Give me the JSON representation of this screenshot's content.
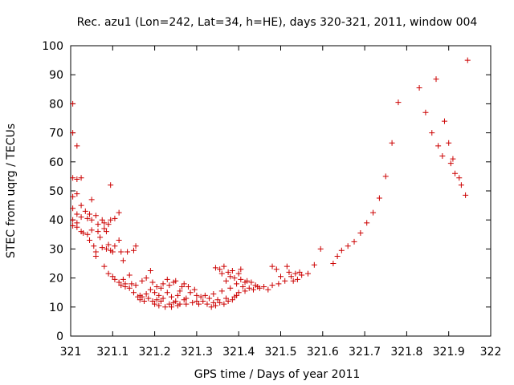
{
  "chart_data": {
    "type": "scatter",
    "title": "Rec. azu1 (Lon=242, Lat=34, h=HE), days 320-321, 2011, window 004",
    "xlabel": "GPS time / Days of year 2011",
    "ylabel": "STEC from uqrg / TECUs",
    "xlim": [
      321,
      322
    ],
    "ylim": [
      0,
      100
    ],
    "xticks": [
      "321",
      "321.1",
      "321.2",
      "321.3",
      "321.4",
      "321.5",
      "321.6",
      "321.7",
      "321.8",
      "321.9",
      "322"
    ],
    "yticks": [
      "0",
      "10",
      "20",
      "30",
      "40",
      "50",
      "60",
      "70",
      "80",
      "90",
      "100"
    ],
    "marker": "plus",
    "color": "#cc0000",
    "grid": false,
    "legend": "none",
    "series": [
      {
        "points": [
          [
            321.005,
            80
          ],
          [
            321.005,
            70
          ],
          [
            321.005,
            54.5
          ],
          [
            321.005,
            48
          ],
          [
            321.005,
            44
          ],
          [
            321.005,
            40
          ],
          [
            321.005,
            38
          ],
          [
            321.015,
            65.5
          ],
          [
            321.015,
            54
          ],
          [
            321.015,
            49
          ],
          [
            321.015,
            42
          ],
          [
            321.015,
            39
          ],
          [
            321.015,
            37.5
          ],
          [
            321.025,
            54.5
          ],
          [
            321.025,
            45
          ],
          [
            321.025,
            41
          ],
          [
            321.025,
            36
          ],
          [
            321.03,
            35.5
          ],
          [
            321.035,
            43
          ],
          [
            321.04,
            40.5
          ],
          [
            321.04,
            35
          ],
          [
            321.045,
            42
          ],
          [
            321.045,
            33
          ],
          [
            321.05,
            47
          ],
          [
            321.05,
            40
          ],
          [
            321.05,
            36.5
          ],
          [
            321.055,
            31
          ],
          [
            321.06,
            41.5
          ],
          [
            321.06,
            29
          ],
          [
            321.06,
            27.5
          ],
          [
            321.065,
            38.5
          ],
          [
            321.065,
            36
          ],
          [
            321.07,
            34
          ],
          [
            321.075,
            40
          ],
          [
            321.075,
            30.5
          ],
          [
            321.08,
            39
          ],
          [
            321.08,
            37
          ],
          [
            321.08,
            24
          ],
          [
            321.085,
            36
          ],
          [
            321.085,
            30
          ],
          [
            321.09,
            38.5
          ],
          [
            321.09,
            31.5
          ],
          [
            321.09,
            21.5
          ],
          [
            321.095,
            52
          ],
          [
            321.095,
            40
          ],
          [
            321.095,
            29.5
          ],
          [
            321.1,
            20.5
          ],
          [
            321.1,
            29
          ],
          [
            321.105,
            40.5
          ],
          [
            321.105,
            31
          ],
          [
            321.105,
            19.5
          ],
          [
            321.115,
            42.5
          ],
          [
            321.115,
            33
          ],
          [
            321.115,
            18.5
          ],
          [
            321.12,
            29
          ],
          [
            321.12,
            17.5
          ],
          [
            321.125,
            26
          ],
          [
            321.125,
            19.5
          ],
          [
            321.13,
            18
          ],
          [
            321.13,
            17
          ],
          [
            321.135,
            29
          ],
          [
            321.14,
            21
          ],
          [
            321.14,
            16.5
          ],
          [
            321.145,
            18
          ],
          [
            321.15,
            29.5
          ],
          [
            321.15,
            15
          ],
          [
            321.155,
            31
          ],
          [
            321.155,
            17.5
          ],
          [
            321.16,
            13.5
          ],
          [
            321.165,
            14
          ],
          [
            321.165,
            12.5
          ],
          [
            321.17,
            19
          ],
          [
            321.17,
            13.5
          ],
          [
            321.175,
            12
          ],
          [
            321.18,
            20
          ],
          [
            321.18,
            14.5
          ],
          [
            321.185,
            13
          ],
          [
            321.19,
            22.5
          ],
          [
            321.19,
            16
          ],
          [
            321.195,
            18.5
          ],
          [
            321.195,
            12
          ],
          [
            321.2,
            15
          ],
          [
            321.2,
            11
          ],
          [
            321.205,
            17
          ],
          [
            321.205,
            12.5
          ],
          [
            321.21,
            14
          ],
          [
            321.21,
            10.5
          ],
          [
            321.215,
            16.5
          ],
          [
            321.215,
            12
          ],
          [
            321.22,
            18
          ],
          [
            321.22,
            13
          ],
          [
            321.225,
            10
          ],
          [
            321.23,
            19.5
          ],
          [
            321.23,
            15
          ],
          [
            321.235,
            17.5
          ],
          [
            321.235,
            11
          ],
          [
            321.24,
            13.5
          ],
          [
            321.24,
            10
          ],
          [
            321.245,
            18.5
          ],
          [
            321.245,
            11.5
          ],
          [
            321.25,
            19
          ],
          [
            321.25,
            12
          ],
          [
            321.255,
            14
          ],
          [
            321.255,
            10.5
          ],
          [
            321.26,
            15.5
          ],
          [
            321.26,
            11
          ],
          [
            321.265,
            17
          ],
          [
            321.27,
            18
          ],
          [
            321.27,
            12.5
          ],
          [
            321.275,
            13
          ],
          [
            321.275,
            11
          ],
          [
            321.28,
            17
          ],
          [
            321.285,
            15
          ],
          [
            321.29,
            11.5
          ],
          [
            321.295,
            16
          ],
          [
            321.3,
            14
          ],
          [
            321.3,
            12
          ],
          [
            321.305,
            11
          ],
          [
            321.31,
            13.5
          ],
          [
            321.315,
            12
          ],
          [
            321.32,
            14
          ],
          [
            321.325,
            11
          ],
          [
            321.33,
            13
          ],
          [
            321.335,
            10
          ],
          [
            321.34,
            14.5
          ],
          [
            321.34,
            11.5
          ],
          [
            321.345,
            23.5
          ],
          [
            321.345,
            10.5
          ],
          [
            321.35,
            12.5
          ],
          [
            321.355,
            23
          ],
          [
            321.355,
            11.5
          ],
          [
            321.36,
            21.5
          ],
          [
            321.36,
            15.5
          ],
          [
            321.365,
            24
          ],
          [
            321.365,
            11
          ],
          [
            321.37,
            19
          ],
          [
            321.37,
            13
          ],
          [
            321.375,
            22
          ],
          [
            321.375,
            12
          ],
          [
            321.38,
            20.5
          ],
          [
            321.38,
            16.5
          ],
          [
            321.385,
            22.5
          ],
          [
            321.385,
            12.5
          ],
          [
            321.39,
            20
          ],
          [
            321.39,
            13.5
          ],
          [
            321.395,
            18
          ],
          [
            321.395,
            14
          ],
          [
            321.4,
            21.5
          ],
          [
            321.4,
            15
          ],
          [
            321.405,
            23
          ],
          [
            321.405,
            19.5
          ],
          [
            321.41,
            17
          ],
          [
            321.415,
            18.5
          ],
          [
            321.415,
            15.5
          ],
          [
            321.42,
            19
          ],
          [
            321.425,
            16.5
          ],
          [
            321.43,
            18.5
          ],
          [
            321.435,
            16
          ],
          [
            321.44,
            17.5
          ],
          [
            321.445,
            17
          ],
          [
            321.45,
            16.5
          ],
          [
            321.46,
            17
          ],
          [
            321.47,
            16
          ],
          [
            321.48,
            24
          ],
          [
            321.48,
            17.5
          ],
          [
            321.49,
            23
          ],
          [
            321.495,
            18
          ],
          [
            321.5,
            20.5
          ],
          [
            321.51,
            19
          ],
          [
            321.515,
            24
          ],
          [
            321.52,
            22
          ],
          [
            321.525,
            20.5
          ],
          [
            321.53,
            19
          ],
          [
            321.535,
            21.5
          ],
          [
            321.54,
            19.5
          ],
          [
            321.545,
            22
          ],
          [
            321.55,
            21
          ],
          [
            321.565,
            21.5
          ],
          [
            321.58,
            24.5
          ],
          [
            321.595,
            30
          ],
          [
            321.625,
            25
          ],
          [
            321.635,
            27.5
          ],
          [
            321.645,
            29.5
          ],
          [
            321.66,
            31
          ],
          [
            321.675,
            32.5
          ],
          [
            321.69,
            35.5
          ],
          [
            321.705,
            39
          ],
          [
            321.72,
            42.5
          ],
          [
            321.735,
            47.5
          ],
          [
            321.75,
            55
          ],
          [
            321.765,
            66.5
          ],
          [
            321.78,
            80.5
          ],
          [
            321.83,
            85.5
          ],
          [
            321.845,
            77
          ],
          [
            321.86,
            70
          ],
          [
            321.87,
            88.5
          ],
          [
            321.875,
            65.5
          ],
          [
            321.885,
            62
          ],
          [
            321.89,
            74
          ],
          [
            321.9,
            66.5
          ],
          [
            321.905,
            59.5
          ],
          [
            321.91,
            61
          ],
          [
            321.915,
            56
          ],
          [
            321.925,
            54.5
          ],
          [
            321.93,
            52
          ],
          [
            321.94,
            48.5
          ],
          [
            321.945,
            95
          ]
        ]
      }
    ]
  }
}
